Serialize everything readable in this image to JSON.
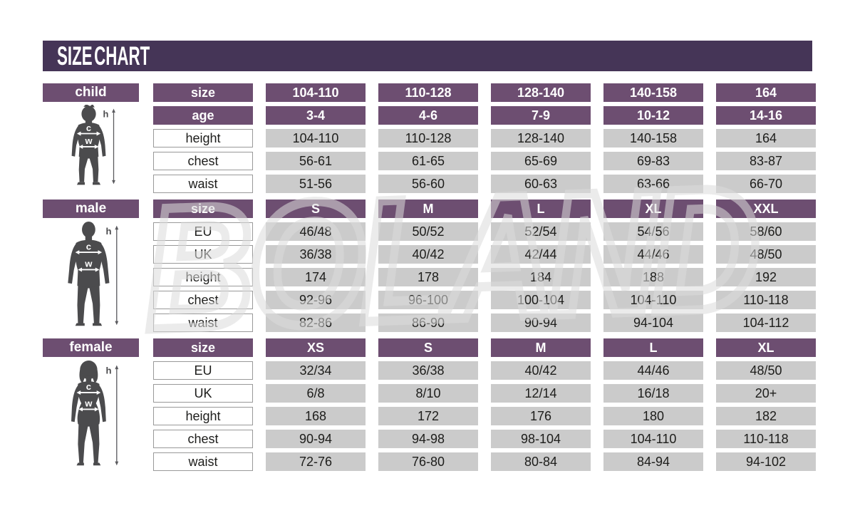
{
  "title": "SIZE CHART",
  "watermark_text": "BOLAND",
  "colors": {
    "title_bar": "#453557",
    "header_purple": "#6d4e71",
    "cell_gray": "#cbcbcb",
    "cell_text": "#1d1d1b",
    "figure_gray": "#4b4b4d",
    "watermark_gray": "#dcdcdc"
  },
  "figure_labels": {
    "height": "h",
    "chest": "c",
    "waist": "w"
  },
  "chart_data": {
    "type": "table",
    "title": "SIZE CHART",
    "tables": [
      {
        "id": "child",
        "label": "child",
        "rows": [
          {
            "type": "header",
            "label": "size",
            "values": [
              "104-110",
              "110-128",
              "128-140",
              "140-158",
              "164"
            ]
          },
          {
            "type": "header",
            "label": "age",
            "values": [
              "3-4",
              "4-6",
              "7-9",
              "10-12",
              "14-16"
            ]
          },
          {
            "type": "data",
            "label": "height",
            "values": [
              "104-110",
              "110-128",
              "128-140",
              "140-158",
              "164"
            ]
          },
          {
            "type": "data",
            "label": "chest",
            "values": [
              "56-61",
              "61-65",
              "65-69",
              "69-83",
              "83-87"
            ]
          },
          {
            "type": "data",
            "label": "waist",
            "values": [
              "51-56",
              "56-60",
              "60-63",
              "63-66",
              "66-70"
            ]
          }
        ]
      },
      {
        "id": "male",
        "label": "male",
        "rows": [
          {
            "type": "header",
            "label": "size",
            "values": [
              "S",
              "M",
              "L",
              "XL",
              "XXL"
            ]
          },
          {
            "type": "data",
            "label": "EU",
            "values": [
              "46/48",
              "50/52",
              "52/54",
              "54/56",
              "58/60"
            ]
          },
          {
            "type": "data",
            "label": "UK",
            "values": [
              "36/38",
              "40/42",
              "42/44",
              "44/46",
              "48/50"
            ]
          },
          {
            "type": "data",
            "label": "height",
            "values": [
              "174",
              "178",
              "184",
              "188",
              "192"
            ]
          },
          {
            "type": "data",
            "label": "chest",
            "values": [
              "92-96",
              "96-100",
              "100-104",
              "104-110",
              "110-118"
            ]
          },
          {
            "type": "data",
            "label": "waist",
            "values": [
              "82-86",
              "86-90",
              "90-94",
              "94-104",
              "104-112"
            ]
          }
        ]
      },
      {
        "id": "female",
        "label": "female",
        "rows": [
          {
            "type": "header",
            "label": "size",
            "values": [
              "XS",
              "S",
              "M",
              "L",
              "XL"
            ]
          },
          {
            "type": "data",
            "label": "EU",
            "values": [
              "32/34",
              "36/38",
              "40/42",
              "44/46",
              "48/50"
            ]
          },
          {
            "type": "data",
            "label": "UK",
            "values": [
              "6/8",
              "8/10",
              "12/14",
              "16/18",
              "20+"
            ]
          },
          {
            "type": "data",
            "label": "height",
            "values": [
              "168",
              "172",
              "176",
              "180",
              "182"
            ]
          },
          {
            "type": "data",
            "label": "chest",
            "values": [
              "90-94",
              "94-98",
              "98-104",
              "104-110",
              "110-118"
            ]
          },
          {
            "type": "data",
            "label": "waist",
            "values": [
              "72-76",
              "76-80",
              "80-84",
              "84-94",
              "94-102"
            ]
          }
        ]
      }
    ]
  }
}
